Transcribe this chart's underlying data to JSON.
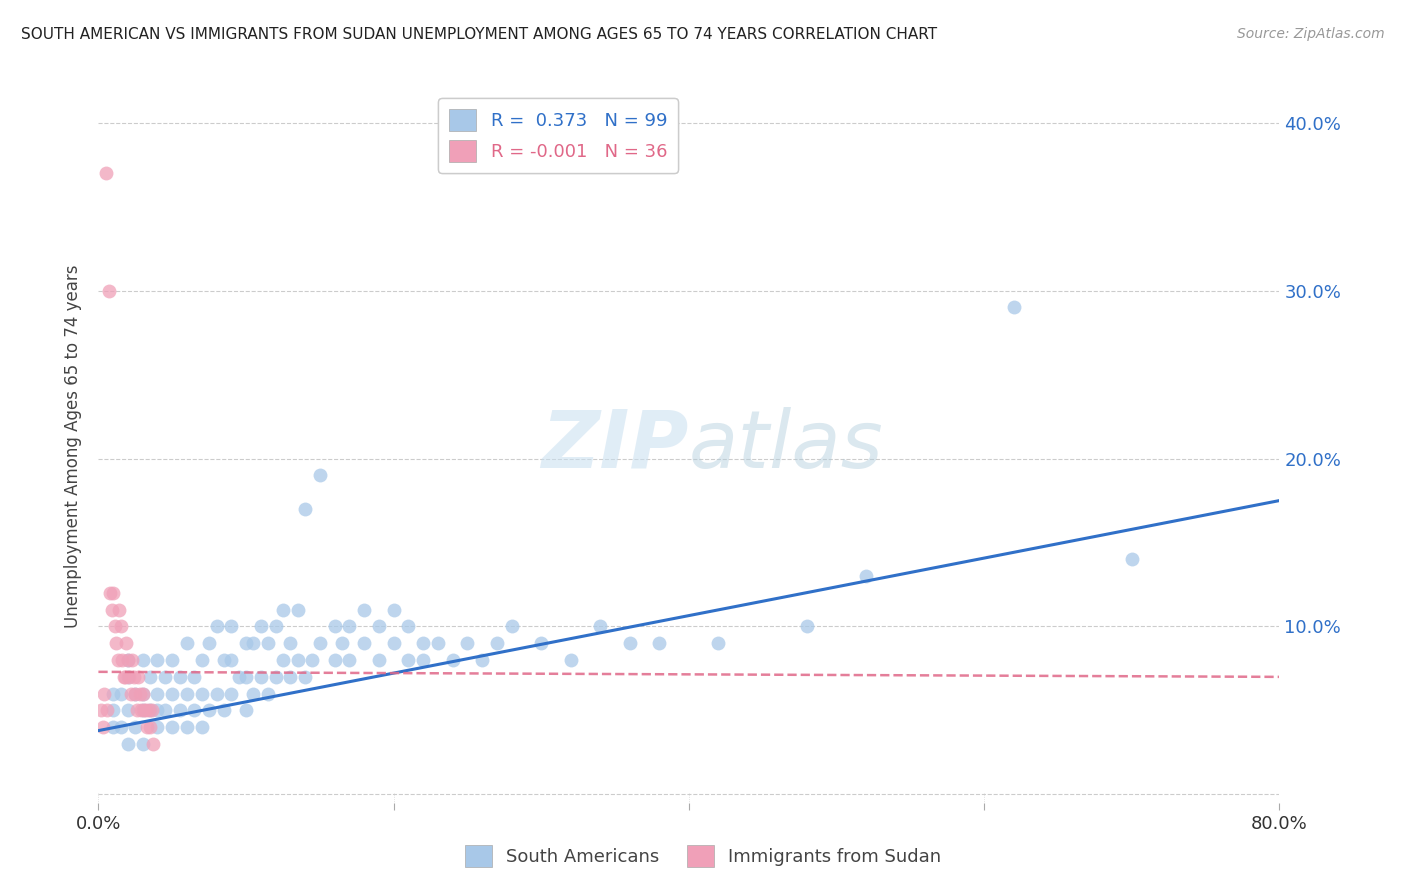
{
  "title": "SOUTH AMERICAN VS IMMIGRANTS FROM SUDAN UNEMPLOYMENT AMONG AGES 65 TO 74 YEARS CORRELATION CHART",
  "source": "Source: ZipAtlas.com",
  "ylabel": "Unemployment Among Ages 65 to 74 years",
  "xlim": [
    0.0,
    0.8
  ],
  "ylim": [
    -0.005,
    0.42
  ],
  "yticks": [
    0.0,
    0.1,
    0.2,
    0.3,
    0.4
  ],
  "ytick_labels_right": [
    "",
    "10.0%",
    "20.0%",
    "30.0%",
    "40.0%"
  ],
  "xticks": [
    0.0,
    0.2,
    0.4,
    0.6,
    0.8
  ],
  "xtick_labels": [
    "0.0%",
    "",
    "",
    "",
    "80.0%"
  ],
  "blue_R": 0.373,
  "blue_N": 99,
  "pink_R": -0.001,
  "pink_N": 36,
  "blue_color": "#a8c8e8",
  "pink_color": "#f0a0b8",
  "blue_line_color": "#3070c8",
  "pink_line_color": "#e06888",
  "watermark_zip": "ZIP",
  "watermark_atlas": "atlas",
  "legend_blue_label": "South Americans",
  "legend_pink_label": "Immigrants from Sudan",
  "blue_scatter_x": [
    0.01,
    0.01,
    0.01,
    0.015,
    0.015,
    0.02,
    0.02,
    0.02,
    0.02,
    0.025,
    0.025,
    0.03,
    0.03,
    0.03,
    0.03,
    0.035,
    0.035,
    0.04,
    0.04,
    0.04,
    0.04,
    0.045,
    0.045,
    0.05,
    0.05,
    0.05,
    0.055,
    0.055,
    0.06,
    0.06,
    0.06,
    0.065,
    0.065,
    0.07,
    0.07,
    0.07,
    0.075,
    0.075,
    0.08,
    0.08,
    0.085,
    0.085,
    0.09,
    0.09,
    0.09,
    0.095,
    0.1,
    0.1,
    0.1,
    0.105,
    0.105,
    0.11,
    0.11,
    0.115,
    0.115,
    0.12,
    0.12,
    0.125,
    0.125,
    0.13,
    0.13,
    0.135,
    0.135,
    0.14,
    0.14,
    0.145,
    0.15,
    0.15,
    0.16,
    0.16,
    0.165,
    0.17,
    0.17,
    0.18,
    0.18,
    0.19,
    0.19,
    0.2,
    0.2,
    0.21,
    0.21,
    0.22,
    0.22,
    0.23,
    0.24,
    0.25,
    0.26,
    0.27,
    0.28,
    0.3,
    0.32,
    0.34,
    0.36,
    0.38,
    0.42,
    0.48,
    0.52,
    0.62,
    0.7
  ],
  "blue_scatter_y": [
    0.04,
    0.05,
    0.06,
    0.04,
    0.06,
    0.03,
    0.05,
    0.07,
    0.08,
    0.04,
    0.06,
    0.03,
    0.05,
    0.06,
    0.08,
    0.05,
    0.07,
    0.04,
    0.05,
    0.06,
    0.08,
    0.05,
    0.07,
    0.04,
    0.06,
    0.08,
    0.05,
    0.07,
    0.04,
    0.06,
    0.09,
    0.05,
    0.07,
    0.04,
    0.06,
    0.08,
    0.05,
    0.09,
    0.06,
    0.1,
    0.05,
    0.08,
    0.06,
    0.08,
    0.1,
    0.07,
    0.05,
    0.07,
    0.09,
    0.06,
    0.09,
    0.07,
    0.1,
    0.06,
    0.09,
    0.07,
    0.1,
    0.08,
    0.11,
    0.07,
    0.09,
    0.08,
    0.11,
    0.07,
    0.17,
    0.08,
    0.19,
    0.09,
    0.08,
    0.1,
    0.09,
    0.08,
    0.1,
    0.09,
    0.11,
    0.08,
    0.1,
    0.09,
    0.11,
    0.08,
    0.1,
    0.09,
    0.08,
    0.09,
    0.08,
    0.09,
    0.08,
    0.09,
    0.1,
    0.09,
    0.08,
    0.1,
    0.09,
    0.09,
    0.09,
    0.1,
    0.13,
    0.29,
    0.14
  ],
  "pink_scatter_x": [
    0.002,
    0.003,
    0.004,
    0.005,
    0.006,
    0.007,
    0.008,
    0.009,
    0.01,
    0.011,
    0.012,
    0.013,
    0.014,
    0.015,
    0.016,
    0.017,
    0.018,
    0.019,
    0.02,
    0.021,
    0.022,
    0.023,
    0.024,
    0.025,
    0.026,
    0.027,
    0.028,
    0.029,
    0.03,
    0.031,
    0.032,
    0.033,
    0.034,
    0.035,
    0.036,
    0.037
  ],
  "pink_scatter_y": [
    0.05,
    0.04,
    0.06,
    0.37,
    0.05,
    0.3,
    0.12,
    0.11,
    0.12,
    0.1,
    0.09,
    0.08,
    0.11,
    0.1,
    0.08,
    0.07,
    0.07,
    0.09,
    0.08,
    0.07,
    0.06,
    0.08,
    0.07,
    0.06,
    0.05,
    0.07,
    0.06,
    0.05,
    0.06,
    0.05,
    0.05,
    0.04,
    0.05,
    0.04,
    0.05,
    0.03
  ],
  "blue_line_x0": 0.0,
  "blue_line_y0": 0.038,
  "blue_line_x1": 0.8,
  "blue_line_y1": 0.175,
  "pink_line_x0": 0.0,
  "pink_line_y0": 0.073,
  "pink_line_x1": 0.8,
  "pink_line_y1": 0.07
}
